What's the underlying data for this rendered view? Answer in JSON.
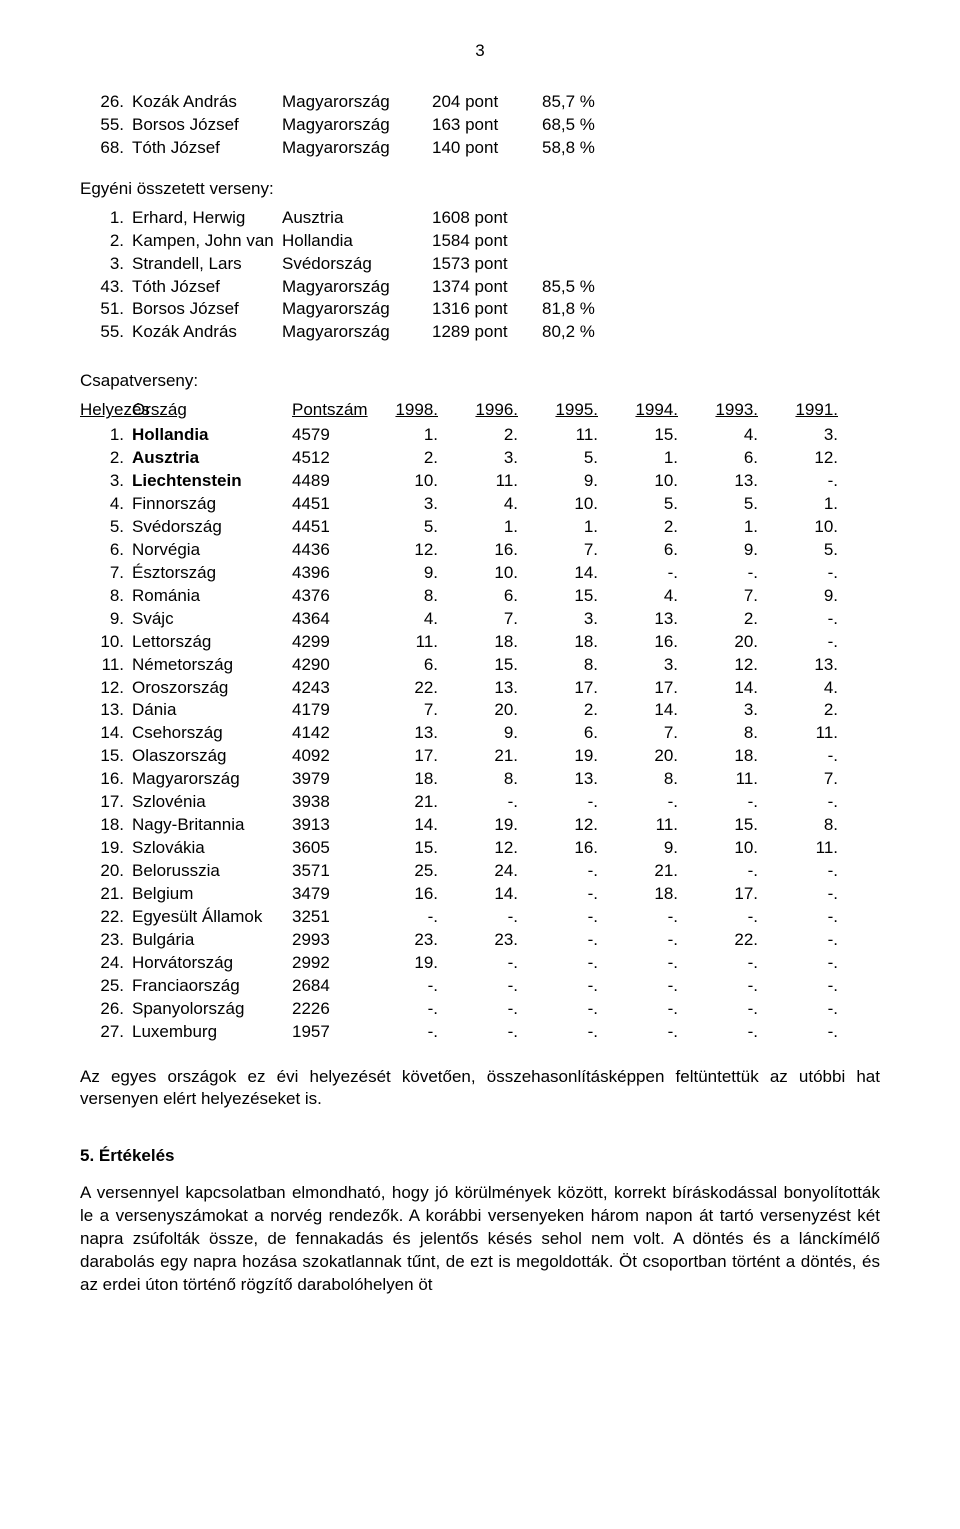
{
  "pageNumber": "3",
  "topList": [
    {
      "rank": "26.",
      "name": "Kozák András",
      "country": "Magyarország",
      "points": "204 pont",
      "pct": "85,7 %"
    },
    {
      "rank": "55.",
      "name": "Borsos József",
      "country": "Magyarország",
      "points": "163 pont",
      "pct": "68,5 %"
    },
    {
      "rank": "68.",
      "name": "Tóth József",
      "country": "Magyarország",
      "points": "140 pont",
      "pct": "58,8 %"
    }
  ],
  "indivTitle": "Egyéni összetett verseny:",
  "indivList": [
    {
      "rank": "1.",
      "name": "Erhard, Herwig",
      "country": "Ausztria",
      "points": "1608 pont",
      "pct": ""
    },
    {
      "rank": "2.",
      "name": "Kampen, John van",
      "country": "Hollandia",
      "points": "1584 pont",
      "pct": ""
    },
    {
      "rank": "3.",
      "name": "Strandell, Lars",
      "country": "Svédország",
      "points": "1573 pont",
      "pct": ""
    },
    {
      "rank": "43.",
      "name": "Tóth József",
      "country": "Magyarország",
      "points": "1374 pont",
      "pct": "85,5 %"
    },
    {
      "rank": "51.",
      "name": "Borsos József",
      "country": "Magyarország",
      "points": "1316 pont",
      "pct": "81,8 %"
    },
    {
      "rank": "55.",
      "name": "Kozák András",
      "country": "Magyarország",
      "points": "1289 pont",
      "pct": "80,2 %"
    }
  ],
  "teamTitle": "Csapatverseny:",
  "teamHeader": {
    "rank": "Helyezés",
    "country": "Ország",
    "score": "Pontszám",
    "years": [
      "1998.",
      "1996.",
      "1995.",
      "1994.",
      "1993.",
      "1991."
    ]
  },
  "teamRows": [
    {
      "rank": "1.",
      "country": "Hollandia",
      "score": "4579",
      "y": [
        "1.",
        "2.",
        "11.",
        "15.",
        "4.",
        "3."
      ],
      "bold": true
    },
    {
      "rank": "2.",
      "country": "Ausztria",
      "score": "4512",
      "y": [
        "2.",
        "3.",
        "5.",
        "1.",
        "6.",
        "12."
      ],
      "bold": true
    },
    {
      "rank": "3.",
      "country": "Liechtenstein",
      "score": "4489",
      "y": [
        "10.",
        "11.",
        "9.",
        "10.",
        "13.",
        "-."
      ],
      "bold": true
    },
    {
      "rank": "4.",
      "country": "Finnország",
      "score": "4451",
      "y": [
        "3.",
        "4.",
        "10.",
        "5.",
        "5.",
        "1."
      ],
      "bold": false
    },
    {
      "rank": "5.",
      "country": "Svédország",
      "score": "4451",
      "y": [
        "5.",
        "1.",
        "1.",
        "2.",
        "1.",
        "10."
      ],
      "bold": false
    },
    {
      "rank": "6.",
      "country": "Norvégia",
      "score": "4436",
      "y": [
        "12.",
        "16.",
        "7.",
        "6.",
        "9.",
        "5."
      ],
      "bold": false
    },
    {
      "rank": "7.",
      "country": "Észtország",
      "score": "4396",
      "y": [
        "9.",
        "10.",
        "14.",
        "-.",
        "-.",
        "-."
      ],
      "bold": false
    },
    {
      "rank": "8.",
      "country": "Románia",
      "score": "4376",
      "y": [
        "8.",
        "6.",
        "15.",
        "4.",
        "7.",
        "9."
      ],
      "bold": false
    },
    {
      "rank": "9.",
      "country": "Svájc",
      "score": "4364",
      "y": [
        "4.",
        "7.",
        "3.",
        "13.",
        "2.",
        "-."
      ],
      "bold": false
    },
    {
      "rank": "10.",
      "country": "Lettország",
      "score": "4299",
      "y": [
        "11.",
        "18.",
        "18.",
        "16.",
        "20.",
        "-."
      ],
      "bold": false
    },
    {
      "rank": "11.",
      "country": "Németország",
      "score": "4290",
      "y": [
        "6.",
        "15.",
        "8.",
        "3.",
        "12.",
        "13."
      ],
      "bold": false
    },
    {
      "rank": "12.",
      "country": "Oroszország",
      "score": "4243",
      "y": [
        "22.",
        "13.",
        "17.",
        "17.",
        "14.",
        "4."
      ],
      "bold": false
    },
    {
      "rank": "13.",
      "country": "Dánia",
      "score": "4179",
      "y": [
        "7.",
        "20.",
        "2.",
        "14.",
        "3.",
        "2."
      ],
      "bold": false
    },
    {
      "rank": "14.",
      "country": "Csehország",
      "score": "4142",
      "y": [
        "13.",
        "9.",
        "6.",
        "7.",
        "8.",
        "11."
      ],
      "bold": false
    },
    {
      "rank": "15.",
      "country": "Olaszország",
      "score": "4092",
      "y": [
        "17.",
        "21.",
        "19.",
        "20.",
        "18.",
        "-."
      ],
      "bold": false
    },
    {
      "rank": "16.",
      "country": "Magyarország",
      "score": "3979",
      "y": [
        "18.",
        "8.",
        "13.",
        "8.",
        "11.",
        "7."
      ],
      "bold": false
    },
    {
      "rank": "17.",
      "country": "Szlovénia",
      "score": "3938",
      "y": [
        "21.",
        "-.",
        "-.",
        "-.",
        "-.",
        "-."
      ],
      "bold": false
    },
    {
      "rank": "18.",
      "country": "Nagy-Britannia",
      "score": "3913",
      "y": [
        "14.",
        "19.",
        "12.",
        "11.",
        "15.",
        "8."
      ],
      "bold": false
    },
    {
      "rank": "19.",
      "country": "Szlovákia",
      "score": "3605",
      "y": [
        "15.",
        "12.",
        "16.",
        "9.",
        "10.",
        "11."
      ],
      "bold": false
    },
    {
      "rank": "20.",
      "country": "Belorusszia",
      "score": "3571",
      "y": [
        "25.",
        "24.",
        "-.",
        "21.",
        "-.",
        "-."
      ],
      "bold": false
    },
    {
      "rank": "21.",
      "country": "Belgium",
      "score": "3479",
      "y": [
        "16.",
        "14.",
        "-.",
        "18.",
        "17.",
        "-."
      ],
      "bold": false
    },
    {
      "rank": "22.",
      "country": "Egyesült Államok",
      "score": "3251",
      "y": [
        "-.",
        "-.",
        "-.",
        "-.",
        "-.",
        "-."
      ],
      "bold": false
    },
    {
      "rank": "23.",
      "country": "Bulgária",
      "score": "2993",
      "y": [
        "23.",
        "23.",
        "-.",
        "-.",
        "22.",
        "-."
      ],
      "bold": false
    },
    {
      "rank": "24.",
      "country": "Horvátország",
      "score": "2992",
      "y": [
        "19.",
        "-.",
        "-.",
        "-.",
        "-.",
        "-."
      ],
      "bold": false
    },
    {
      "rank": "25.",
      "country": "Franciaország",
      "score": "2684",
      "y": [
        "-.",
        "-.",
        "-.",
        "-.",
        "-.",
        "-."
      ],
      "bold": false
    },
    {
      "rank": "26.",
      "country": "Spanyolország",
      "score": "2226",
      "y": [
        "-.",
        "-.",
        "-.",
        "-.",
        "-.",
        "-."
      ],
      "bold": false
    },
    {
      "rank": "27.",
      "country": "Luxemburg",
      "score": "1957",
      "y": [
        "-.",
        "-.",
        "-.",
        "-.",
        "-.",
        "-."
      ],
      "bold": false
    }
  ],
  "afterTeamPara": "Az egyes országok ez évi helyezését követően, összehasonlításképpen feltüntettük az utóbbi hat versenyen elért helyezéseket is.",
  "evalHead": "5. Értékelés",
  "evalBody": "A versennyel kapcsolatban elmondható, hogy jó körülmények között, korrekt bíráskodással bonyolították le a versenyszámokat a norvég rendezők. A korábbi versenyeken három napon át tartó versenyzést két napra zsúfolták össze, de fennakadás és jelentős késés sehol nem volt. A döntés és a lánckímélő darabolás egy napra hozása szokatlannak tűnt, de ezt is megoldották. Öt csoportban történt a döntés, és az erdei úton történő rögzítő darabolóhelyen öt"
}
